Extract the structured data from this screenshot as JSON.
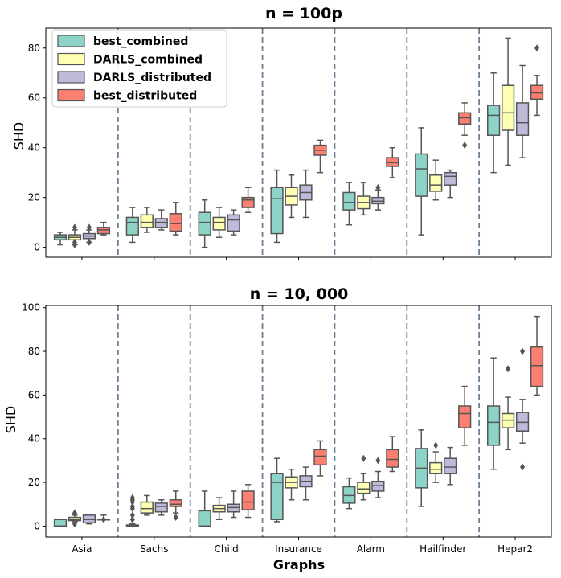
{
  "chart_data": [
    {
      "type": "box",
      "title": "n = 100p",
      "ylabel": "SHD",
      "xlabel": "",
      "ylim": [
        -4,
        88
      ],
      "yticks": [
        0,
        20,
        40,
        60,
        80
      ],
      "categories": [
        "Asia",
        "Sachs",
        "Child",
        "Insurance",
        "Alarm",
        "Hailfinder",
        "Hepar2"
      ],
      "legend": {
        "placement": "top-left",
        "entries": [
          "best_combined",
          "DARLS_combined",
          "DARLS_distributed",
          "best_distributed"
        ]
      },
      "series": [
        {
          "name": "best_combined",
          "color": "#8dd3c7",
          "boxes": [
            {
              "whislo": 1,
              "q1": 3,
              "med": 4,
              "q3": 5,
              "whishi": 6,
              "fliers": []
            },
            {
              "whislo": 2,
              "q1": 5,
              "med": 10,
              "q3": 12,
              "whishi": 16,
              "fliers": []
            },
            {
              "whislo": 0,
              "q1": 5,
              "med": 10,
              "q3": 14,
              "whishi": 19,
              "fliers": []
            },
            {
              "whislo": 2,
              "q1": 5.5,
              "med": 19.5,
              "q3": 24,
              "whishi": 31,
              "fliers": []
            },
            {
              "whislo": 9,
              "q1": 15,
              "med": 18,
              "q3": 22,
              "whishi": 26,
              "fliers": []
            },
            {
              "whislo": 5,
              "q1": 20.5,
              "med": 31.5,
              "q3": 37.5,
              "whishi": 48,
              "fliers": []
            },
            {
              "whislo": 30,
              "q1": 45,
              "med": 53,
              "q3": 57,
              "whishi": 70,
              "fliers": []
            }
          ]
        },
        {
          "name": "DARLS_combined",
          "color": "#ffffb3",
          "boxes": [
            {
              "whislo": 1,
              "q1": 3,
              "med": 4,
              "q3": 5,
              "whishi": 7,
              "fliers": [
                1,
                2,
                8
              ]
            },
            {
              "whislo": 6,
              "q1": 8,
              "med": 10,
              "q3": 13,
              "whishi": 16,
              "fliers": []
            },
            {
              "whislo": 4,
              "q1": 7,
              "med": 10,
              "q3": 12,
              "whishi": 16,
              "fliers": []
            },
            {
              "whislo": 12,
              "q1": 17,
              "med": 20.5,
              "q3": 24,
              "whishi": 29,
              "fliers": []
            },
            {
              "whislo": 13,
              "q1": 15.5,
              "med": 18,
              "q3": 20.5,
              "whishi": 26,
              "fliers": []
            },
            {
              "whislo": 19,
              "q1": 22.5,
              "med": 25,
              "q3": 29,
              "whishi": 35,
              "fliers": []
            },
            {
              "whislo": 33,
              "q1": 47,
              "med": 54,
              "q3": 65,
              "whishi": 84,
              "fliers": []
            }
          ]
        },
        {
          "name": "DARLS_distributed",
          "color": "#bebada",
          "boxes": [
            {
              "whislo": 2,
              "q1": 3.5,
              "med": 4.5,
              "q3": 5.5,
              "whishi": 7,
              "fliers": [
                2,
                8
              ]
            },
            {
              "whislo": 7,
              "q1": 8,
              "med": 10,
              "q3": 11.5,
              "whishi": 15,
              "fliers": []
            },
            {
              "whislo": 5,
              "q1": 6.5,
              "med": 11,
              "q3": 13,
              "whishi": 15,
              "fliers": []
            },
            {
              "whislo": 12,
              "q1": 19,
              "med": 22,
              "q3": 25,
              "whishi": 31,
              "fliers": []
            },
            {
              "whislo": 15,
              "q1": 17.5,
              "med": 18.5,
              "q3": 20,
              "whishi": 23,
              "fliers": [
                24
              ]
            },
            {
              "whislo": 20,
              "q1": 25,
              "med": 28.5,
              "q3": 30,
              "whishi": 31,
              "fliers": []
            },
            {
              "whislo": 36,
              "q1": 45,
              "med": 50,
              "q3": 58,
              "whishi": 73,
              "fliers": []
            }
          ]
        },
        {
          "name": "best_distributed",
          "color": "#fb8072",
          "boxes": [
            {
              "whislo": 5,
              "q1": 5.5,
              "med": 7,
              "q3": 8,
              "whishi": 10,
              "fliers": []
            },
            {
              "whislo": 5,
              "q1": 6.5,
              "med": 9.5,
              "q3": 13.5,
              "whishi": 18,
              "fliers": []
            },
            {
              "whislo": 14,
              "q1": 16,
              "med": 19,
              "q3": 20,
              "whishi": 24,
              "fliers": []
            },
            {
              "whislo": 30,
              "q1": 37,
              "med": 39,
              "q3": 41,
              "whishi": 43,
              "fliers": []
            },
            {
              "whislo": 28,
              "q1": 32.5,
              "med": 34,
              "q3": 36,
              "whishi": 40,
              "fliers": []
            },
            {
              "whislo": 45,
              "q1": 49.5,
              "med": 52,
              "q3": 54,
              "whishi": 58,
              "fliers": [
                41
              ]
            },
            {
              "whislo": 53,
              "q1": 59.5,
              "med": 62,
              "q3": 65,
              "whishi": 69,
              "fliers": [
                80
              ]
            }
          ]
        }
      ]
    },
    {
      "type": "box",
      "title": "n = 10, 000",
      "ylabel": "SHD",
      "xlabel": "Graphs",
      "ylim": [
        -5,
        101
      ],
      "yticks": [
        0,
        20,
        40,
        60,
        80,
        100
      ],
      "categories": [
        "Asia",
        "Sachs",
        "Child",
        "Insurance",
        "Alarm",
        "Hailfinder",
        "Hepar2"
      ],
      "series": [
        {
          "name": "best_combined",
          "color": "#8dd3c7",
          "boxes": [
            {
              "whislo": 0,
              "q1": 0,
              "med": 0,
              "q3": 3,
              "whishi": 3,
              "fliers": []
            },
            {
              "whislo": 0,
              "q1": 0,
              "med": 0,
              "q3": 0.5,
              "whishi": 1,
              "fliers": [
                3,
                5,
                8,
                9,
                11,
                12,
                13
              ]
            },
            {
              "whislo": 0,
              "q1": 0,
              "med": 0,
              "q3": 7,
              "whishi": 16,
              "fliers": []
            },
            {
              "whislo": 2,
              "q1": 3,
              "med": 20,
              "q3": 24,
              "whishi": 31,
              "fliers": []
            },
            {
              "whislo": 8,
              "q1": 10.5,
              "med": 14,
              "q3": 18,
              "whishi": 22,
              "fliers": []
            },
            {
              "whislo": 9,
              "q1": 17.5,
              "med": 26.5,
              "q3": 35.5,
              "whishi": 44,
              "fliers": []
            },
            {
              "whislo": 26,
              "q1": 37,
              "med": 47.5,
              "q3": 55,
              "whishi": 77,
              "fliers": []
            }
          ]
        },
        {
          "name": "DARLS_combined",
          "color": "#ffffb3",
          "boxes": [
            {
              "whislo": 2,
              "q1": 2.5,
              "med": 3,
              "q3": 4,
              "whishi": 5,
              "fliers": [
                1,
                6
              ]
            },
            {
              "whislo": 5,
              "q1": 6,
              "med": 8,
              "q3": 11,
              "whishi": 14,
              "fliers": []
            },
            {
              "whislo": 3,
              "q1": 6.5,
              "med": 8,
              "q3": 9.5,
              "whishi": 13,
              "fliers": []
            },
            {
              "whislo": 12,
              "q1": 17.5,
              "med": 20,
              "q3": 22.5,
              "whishi": 26,
              "fliers": []
            },
            {
              "whislo": 12,
              "q1": 15,
              "med": 17,
              "q3": 20,
              "whishi": 24,
              "fliers": [
                31
              ]
            },
            {
              "whislo": 20,
              "q1": 24,
              "med": 26,
              "q3": 29,
              "whishi": 34,
              "fliers": [
                37
              ]
            },
            {
              "whislo": 35,
              "q1": 45,
              "med": 48.5,
              "q3": 51.5,
              "whishi": 59,
              "fliers": [
                72
              ]
            }
          ]
        },
        {
          "name": "DARLS_distributed",
          "color": "#bebada",
          "boxes": [
            {
              "whislo": 1,
              "q1": 1.5,
              "med": 3,
              "q3": 5,
              "whishi": 5,
              "fliers": []
            },
            {
              "whislo": 5,
              "q1": 6.5,
              "med": 9,
              "q3": 10.5,
              "whishi": 12,
              "fliers": []
            },
            {
              "whislo": 4,
              "q1": 6.5,
              "med": 8.5,
              "q3": 10,
              "whishi": 16,
              "fliers": []
            },
            {
              "whislo": 12,
              "q1": 18,
              "med": 20.5,
              "q3": 23,
              "whishi": 27,
              "fliers": []
            },
            {
              "whislo": 13,
              "q1": 16,
              "med": 18.5,
              "q3": 20.5,
              "whishi": 25,
              "fliers": [
                30
              ]
            },
            {
              "whislo": 19,
              "q1": 24,
              "med": 27,
              "q3": 31,
              "whishi": 36,
              "fliers": []
            },
            {
              "whislo": 38,
              "q1": 43.5,
              "med": 47.5,
              "q3": 52,
              "whishi": 58,
              "fliers": [
                27,
                80
              ]
            }
          ]
        },
        {
          "name": "best_distributed",
          "color": "#fb8072",
          "boxes": [
            {
              "whislo": 3,
              "q1": 3,
              "med": 3,
              "q3": 3,
              "whishi": 5,
              "fliers": [
                3
              ]
            },
            {
              "whislo": 6,
              "q1": 9,
              "med": 10,
              "q3": 12,
              "whishi": 16,
              "fliers": [
                4
              ]
            },
            {
              "whislo": 4,
              "q1": 7.5,
              "med": 11,
              "q3": 16,
              "whishi": 19,
              "fliers": []
            },
            {
              "whislo": 23,
              "q1": 28,
              "med": 32,
              "q3": 35,
              "whishi": 39,
              "fliers": []
            },
            {
              "whislo": 25,
              "q1": 27,
              "med": 30.5,
              "q3": 35,
              "whishi": 41,
              "fliers": []
            },
            {
              "whislo": 37,
              "q1": 45,
              "med": 51.5,
              "q3": 55,
              "whishi": 64,
              "fliers": []
            },
            {
              "whislo": 60,
              "q1": 64,
              "med": 73.5,
              "q3": 82,
              "whishi": 96,
              "fliers": []
            }
          ]
        }
      ]
    }
  ]
}
